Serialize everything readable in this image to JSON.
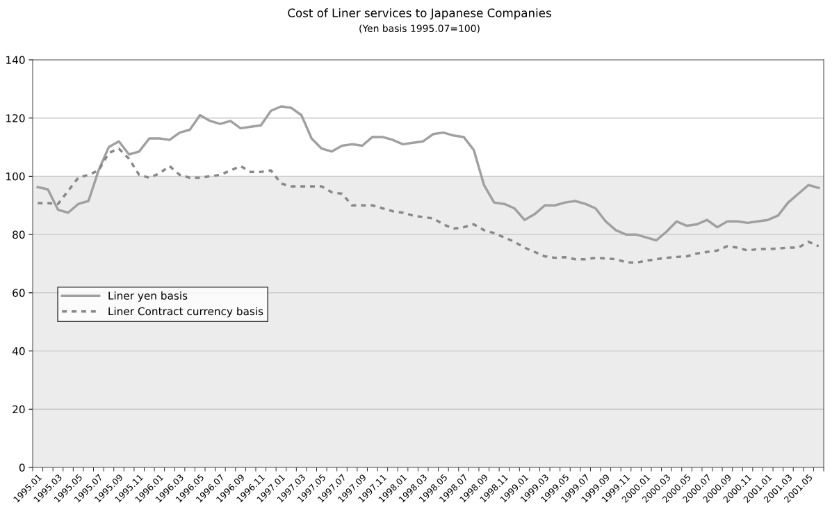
{
  "chart_data": {
    "type": "line",
    "title": "Cost of Liner services to Japanese Companies",
    "subtitle": "(Yen basis 1995.07=100)",
    "categories": [
      "1995.01",
      null,
      "1995.03",
      null,
      "1995.05",
      null,
      "1995.07",
      null,
      "1995.09",
      null,
      "1995.11",
      null,
      "1996.01",
      null,
      "1996.03",
      null,
      "1996.05",
      null,
      "1996.07",
      null,
      "1996.09",
      null,
      "1996.11",
      null,
      "1997.01",
      null,
      "1997.03",
      null,
      "1997.05",
      null,
      "1997.07",
      null,
      "1997.09",
      null,
      "1997.11",
      null,
      "1998.01",
      null,
      "1998.03",
      null,
      "1998.05",
      null,
      "1998.07",
      null,
      "1998.09",
      null,
      "1998.11",
      null,
      "1999.01",
      null,
      "1999.03",
      null,
      "1999.05",
      null,
      "1999.07",
      null,
      "1999.09",
      null,
      "1999.11",
      null,
      "2000.01",
      null,
      "2000.03",
      null,
      "2000.05",
      null,
      "2000.07",
      null,
      "2000.09",
      null,
      "2000.11",
      null,
      "2001.01",
      null,
      "2001.03",
      null,
      "2001.05",
      null
    ],
    "series": [
      {
        "name": "Liner yen basis",
        "color": "#a0a0a0",
        "line_style": "solid",
        "values": [
          96.3,
          95.5,
          88.5,
          87.5,
          90.5,
          91.5,
          102,
          110,
          112,
          107.5,
          108.5,
          113,
          113,
          112.5,
          115,
          116,
          121,
          119,
          118,
          119,
          116.5,
          117,
          117.5,
          122.5,
          124,
          123.5,
          121,
          113,
          109.5,
          108.5,
          110.5,
          111,
          110.5,
          113.5,
          113.5,
          112.5,
          111,
          111.5,
          112,
          114.5,
          115,
          114,
          113.5,
          109,
          97,
          91,
          90.5,
          89,
          85,
          87,
          90,
          90,
          91,
          91.5,
          90.5,
          89,
          84.5,
          81.5,
          80,
          80,
          79,
          78,
          81,
          84.5,
          83,
          83.5,
          85,
          82.5,
          84.5,
          84.5,
          84,
          84.5,
          85,
          86.5,
          91,
          94,
          97,
          96
        ]
      },
      {
        "name": "Liner Contract currency basis",
        "color": "#888888",
        "line_style": "dashed",
        "values": [
          90.8,
          90.8,
          90.5,
          95,
          99.5,
          100.5,
          102,
          108,
          109.5,
          106,
          100.5,
          99.5,
          101,
          103.5,
          100.5,
          99.5,
          99.5,
          100,
          100.5,
          102,
          103.5,
          101.5,
          101.5,
          102,
          97.5,
          96.5,
          96.5,
          96.5,
          96.5,
          94.5,
          94,
          90,
          90,
          90,
          89,
          88,
          87.5,
          86.5,
          86,
          85.5,
          83.5,
          82,
          82.5,
          83.5,
          81.5,
          80.5,
          79,
          77.5,
          75.5,
          74,
          72.5,
          72,
          72.2,
          71.5,
          71.5,
          72,
          71.8,
          71.5,
          70.5,
          70.3,
          71,
          71.5,
          72,
          72.3,
          72.5,
          73.5,
          74,
          74.5,
          76,
          75.5,
          74.5,
          75,
          75,
          75.2,
          75.5,
          75.5,
          77.5,
          76
        ]
      }
    ],
    "ylim": [
      0,
      140
    ],
    "yticks": [
      0,
      20,
      40,
      60,
      80,
      100,
      120,
      140
    ],
    "bands": [
      {
        "axis": "y",
        "from": 0,
        "to": 100,
        "color": "#ececec"
      }
    ],
    "grid": "y",
    "legend": "left",
    "marker": "none"
  }
}
